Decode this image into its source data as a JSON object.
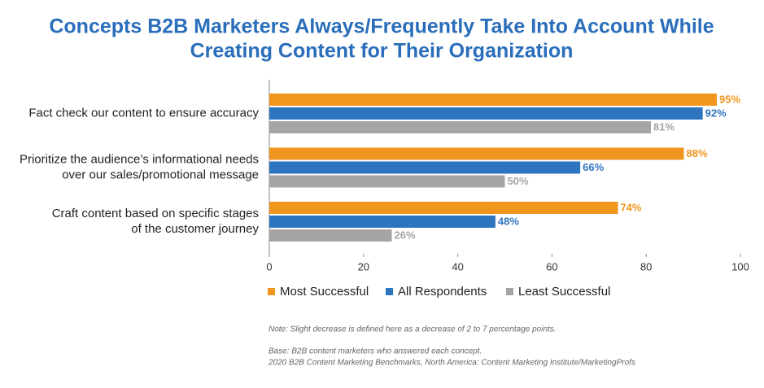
{
  "chart_data": {
    "type": "bar",
    "orientation": "horizontal",
    "title_lines": [
      "Concepts B2B Marketers Always/Frequently Take Into Account While",
      "Creating Content for Their Organization"
    ],
    "categories": [
      [
        "Fact check our content to ensure accuracy"
      ],
      [
        "Prioritize the audience’s informational needs",
        "over our sales/promotional message"
      ],
      [
        "Craft content based on specific stages",
        "of the customer journey"
      ]
    ],
    "series": [
      {
        "name": "Most Successful",
        "color": "#f0961e",
        "values": [
          95,
          88,
          74
        ],
        "value_labels": [
          "95%",
          "88%",
          "74%"
        ]
      },
      {
        "name": "All Respondents",
        "color": "#2e75c0",
        "values": [
          92,
          66,
          48
        ],
        "value_labels": [
          "92%",
          "66%",
          "48%"
        ]
      },
      {
        "name": "Least Successful",
        "color": "#a5a5a5",
        "values": [
          81,
          50,
          26
        ],
        "value_labels": [
          "81%",
          "50%",
          "26%"
        ]
      }
    ],
    "xlim": [
      0,
      100
    ],
    "xticks": [
      0,
      20,
      40,
      60,
      80,
      100
    ],
    "legend": "bottom",
    "notes": [
      "Note: Slight decrease is defined here as a decrease of 2 to 7 percentage points.",
      "Base: B2B content marketers who answered each concept.",
      "2020 B2B Content Marketing Benchmarks, North America: Content Marketing Institute/MarketingProfs"
    ]
  }
}
